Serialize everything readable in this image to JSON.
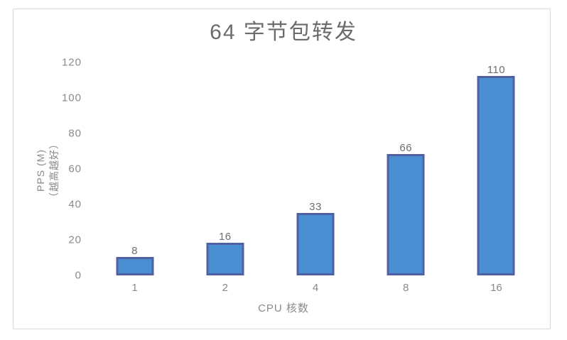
{
  "chart_data": {
    "type": "bar",
    "title": "64 字节包转发",
    "categories": [
      "1",
      "2",
      "4",
      "8",
      "16"
    ],
    "values": [
      8,
      16,
      33,
      66,
      110
    ],
    "data_labels": [
      "8",
      "16",
      "33",
      "66",
      "110"
    ],
    "xlabel": "CPU 核数",
    "ylabel_lines": [
      "PPS (M)",
      "（越高越好）"
    ],
    "yticks": [
      0,
      20,
      40,
      60,
      80,
      100,
      120
    ],
    "ylim": [
      0,
      120
    ],
    "grid": false,
    "legend": "none",
    "colors": {
      "bar_fill": "#4a8ed2",
      "bar_border": "#5060a2",
      "title_text": "#6b6b6b",
      "axis_text": "#8a8a8a",
      "value_label_text": "#6e6e6e",
      "frame_border": "#d9d9d9",
      "background": "#ffffff"
    }
  }
}
